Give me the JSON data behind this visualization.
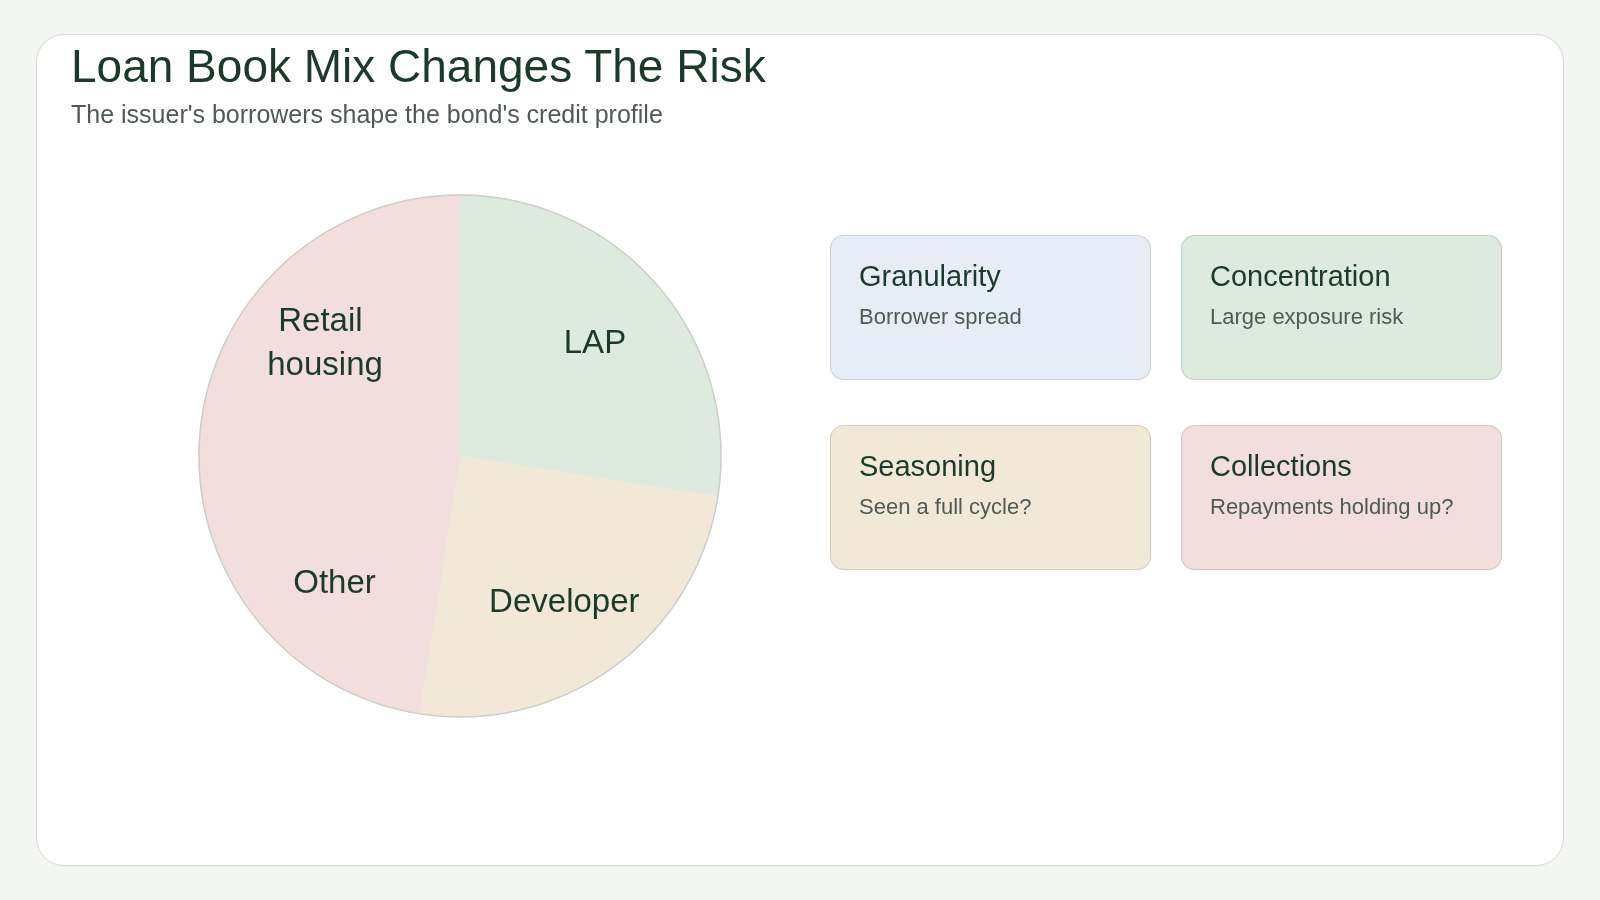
{
  "chart_data": [
    {
      "type": "pie",
      "title": "Loan Book Mix Changes The Risk",
      "subtitle": "The issuer's borrowers shape the bond's credit profile",
      "categories": [
        "LAP",
        "Developer",
        "Other",
        "Retail housing"
      ],
      "values": [
        27.5,
        25,
        20,
        27.5
      ],
      "colors": [
        "#dcebdd",
        "#f1e8d8",
        "#f2dfdd",
        "#f2dfdd"
      ]
    },
    {
      "type": "other",
      "categories": [
        "Granularity",
        "Concentration",
        "Seasoning",
        "Collections"
      ],
      "annotations": [
        "Borrower spread",
        "Large exposure risk",
        "Seen a full cycle?",
        "Repayments holding up?"
      ],
      "colors": [
        "#e6edf7",
        "#dcebdd",
        "#f1e8d8",
        "#f2dfdd"
      ]
    }
  ]
}
